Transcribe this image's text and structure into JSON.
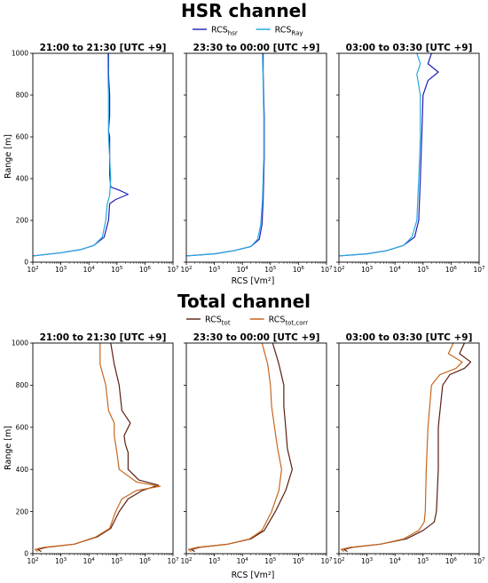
{
  "sections": [
    {
      "title": "HSR channel",
      "legend": [
        {
          "main": "RCS",
          "sub": "hsr",
          "color": "#1f1fb4"
        },
        {
          "main": "RCS",
          "sub": "Ray",
          "color": "#29a8e0"
        }
      ],
      "xlabel": "RCS [Vm²]"
    },
    {
      "title": "Total channel",
      "legend": [
        {
          "main": "RCS",
          "sub": "tot",
          "color": "#5a1f12"
        },
        {
          "main": "RCS",
          "sub": "tot,corr",
          "color": "#c8661e"
        }
      ],
      "xlabel": "RCS [Vm²]"
    }
  ],
  "y_axis_label": "Range [m]",
  "x_tick_labels": [
    {
      "base": "10",
      "exp": "2"
    },
    {
      "base": "10",
      "exp": "3"
    },
    {
      "base": "10",
      "exp": "4"
    },
    {
      "base": "10",
      "exp": "5"
    },
    {
      "base": "10",
      "exp": "6"
    },
    {
      "base": "10",
      "exp": "7"
    }
  ],
  "y_tick_labels": [
    "0",
    "200",
    "400",
    "600",
    "800",
    "1000"
  ],
  "chart_data": [
    {
      "type": "line",
      "title": "21:00 to 21:30 [UTC +9]",
      "section": "HSR channel",
      "x_scale": "log",
      "xlim": [
        100,
        10000000
      ],
      "ylim": [
        0,
        1000
      ],
      "xlabel": "RCS [Vm²]",
      "ylabel": "Range [m]",
      "series": [
        {
          "name": "RCS_hsr",
          "color": "#1f1fb4",
          "points": [
            [
              100,
              30
            ],
            [
              1000,
              45
            ],
            [
              5000,
              60
            ],
            [
              15000,
              80
            ],
            [
              35000,
              120
            ],
            [
              50000,
              200
            ],
            [
              55000,
              280
            ],
            [
              90000,
              300
            ],
            [
              250000,
              325
            ],
            [
              120000,
              345
            ],
            [
              60000,
              360
            ],
            [
              55000,
              420
            ],
            [
              55000,
              600
            ],
            [
              50000,
              630
            ],
            [
              55000,
              700
            ],
            [
              55000,
              800
            ],
            [
              50000,
              900
            ],
            [
              50000,
              1000
            ]
          ]
        },
        {
          "name": "RCS_Ray",
          "color": "#29a8e0",
          "points": [
            [
              100,
              30
            ],
            [
              1000,
              45
            ],
            [
              5000,
              60
            ],
            [
              15000,
              80
            ],
            [
              30000,
              120
            ],
            [
              40000,
              200
            ],
            [
              45000,
              280
            ],
            [
              55000,
              320
            ],
            [
              60000,
              400
            ],
            [
              55000,
              500
            ],
            [
              50000,
              600
            ],
            [
              50000,
              700
            ],
            [
              50000,
              800
            ],
            [
              48000,
              900
            ],
            [
              47000,
              1000
            ]
          ]
        }
      ]
    },
    {
      "type": "line",
      "title": "23:30 to 00:00 [UTC +9]",
      "section": "HSR channel",
      "x_scale": "log",
      "xlim": [
        100,
        10000000
      ],
      "ylim": [
        0,
        1000
      ],
      "xlabel": "RCS [Vm²]",
      "ylabel": "Range [m]",
      "series": [
        {
          "name": "RCS_hsr",
          "color": "#1f1fb4",
          "points": [
            [
              100,
              30
            ],
            [
              1000,
              40
            ],
            [
              5000,
              55
            ],
            [
              20000,
              75
            ],
            [
              40000,
              110
            ],
            [
              50000,
              180
            ],
            [
              55000,
              300
            ],
            [
              60000,
              500
            ],
            [
              60000,
              700
            ],
            [
              55000,
              900
            ],
            [
              55000,
              1000
            ]
          ]
        },
        {
          "name": "RCS_Ray",
          "color": "#29a8e0",
          "points": [
            [
              100,
              30
            ],
            [
              1000,
              40
            ],
            [
              5000,
              55
            ],
            [
              20000,
              75
            ],
            [
              35000,
              110
            ],
            [
              45000,
              180
            ],
            [
              52000,
              300
            ],
            [
              58000,
              500
            ],
            [
              58000,
              700
            ],
            [
              54000,
              900
            ],
            [
              52000,
              1000
            ]
          ]
        }
      ]
    },
    {
      "type": "line",
      "title": "03:00 to 03:30 [UTC +9]",
      "section": "HSR channel",
      "x_scale": "log",
      "xlim": [
        100,
        10000000
      ],
      "ylim": [
        0,
        1000
      ],
      "xlabel": "RCS [Vm²]",
      "ylabel": "Range [m]",
      "series": [
        {
          "name": "RCS_hsr",
          "color": "#1f1fb4",
          "points": [
            [
              100,
              30
            ],
            [
              1000,
              40
            ],
            [
              5000,
              55
            ],
            [
              20000,
              80
            ],
            [
              50000,
              120
            ],
            [
              70000,
              200
            ],
            [
              80000,
              400
            ],
            [
              90000,
              600
            ],
            [
              100000,
              800
            ],
            [
              150000,
              870
            ],
            [
              350000,
              910
            ],
            [
              150000,
              950
            ],
            [
              200000,
              1000
            ]
          ]
        },
        {
          "name": "RCS_Ray",
          "color": "#29a8e0",
          "points": [
            [
              100,
              30
            ],
            [
              1000,
              40
            ],
            [
              5000,
              55
            ],
            [
              20000,
              80
            ],
            [
              40000,
              120
            ],
            [
              60000,
              200
            ],
            [
              70000,
              400
            ],
            [
              80000,
              600
            ],
            [
              80000,
              800
            ],
            [
              60000,
              900
            ],
            [
              80000,
              950
            ],
            [
              60000,
              1000
            ]
          ]
        }
      ]
    },
    {
      "type": "line",
      "title": "21:00 to 21:30 [UTC +9]",
      "section": "Total channel",
      "x_scale": "log",
      "xlim": [
        100,
        10000000
      ],
      "ylim": [
        0,
        1000
      ],
      "xlabel": "RCS [Vm²]",
      "ylabel": "Range [m]",
      "series": [
        {
          "name": "RCS_tot",
          "color": "#5a1f12",
          "points": [
            [
              200,
              10
            ],
            [
              150,
              20
            ],
            [
              300,
              30
            ],
            [
              3000,
              45
            ],
            [
              20000,
              80
            ],
            [
              60000,
              120
            ],
            [
              120000,
              200
            ],
            [
              250000,
              260
            ],
            [
              800000,
              300
            ],
            [
              3000000,
              325
            ],
            [
              600000,
              350
            ],
            [
              250000,
              400
            ],
            [
              250000,
              480
            ],
            [
              200000,
              520
            ],
            [
              180000,
              560
            ],
            [
              300000,
              620
            ],
            [
              150000,
              680
            ],
            [
              120000,
              800
            ],
            [
              80000,
              900
            ],
            [
              60000,
              1000
            ]
          ]
        },
        {
          "name": "RCS_tot,corr",
          "color": "#c8661e",
          "points": [
            [
              150,
              10
            ],
            [
              120,
              20
            ],
            [
              250,
              30
            ],
            [
              3000,
              45
            ],
            [
              18000,
              80
            ],
            [
              55000,
              120
            ],
            [
              90000,
              200
            ],
            [
              150000,
              260
            ],
            [
              500000,
              300
            ],
            [
              3500000,
              320
            ],
            [
              500000,
              340
            ],
            [
              120000,
              400
            ],
            [
              100000,
              480
            ],
            [
              80000,
              560
            ],
            [
              80000,
              620
            ],
            [
              50000,
              680
            ],
            [
              40000,
              800
            ],
            [
              25000,
              900
            ],
            [
              25000,
              1000
            ]
          ]
        }
      ]
    },
    {
      "type": "line",
      "title": "23:30 to 00:00 [UTC +9]",
      "section": "Total channel",
      "x_scale": "log",
      "xlim": [
        100,
        10000000
      ],
      "ylim": [
        0,
        1000
      ],
      "xlabel": "RCS [Vm²]",
      "ylabel": "Range [m]",
      "series": [
        {
          "name": "RCS_tot",
          "color": "#5a1f12",
          "points": [
            [
              200,
              10
            ],
            [
              150,
              20
            ],
            [
              300,
              30
            ],
            [
              3000,
              45
            ],
            [
              20000,
              70
            ],
            [
              60000,
              110
            ],
            [
              150000,
              200
            ],
            [
              350000,
              300
            ],
            [
              600000,
              400
            ],
            [
              400000,
              500
            ],
            [
              350000,
              600
            ],
            [
              300000,
              700
            ],
            [
              300000,
              800
            ],
            [
              200000,
              900
            ],
            [
              120000,
              1000
            ]
          ]
        },
        {
          "name": "RCS_tot,corr",
          "color": "#c8661e",
          "points": [
            [
              150,
              10
            ],
            [
              120,
              20
            ],
            [
              250,
              30
            ],
            [
              3000,
              45
            ],
            [
              18000,
              70
            ],
            [
              50000,
              110
            ],
            [
              110000,
              200
            ],
            [
              200000,
              300
            ],
            [
              250000,
              400
            ],
            [
              180000,
              500
            ],
            [
              140000,
              600
            ],
            [
              110000,
              700
            ],
            [
              100000,
              800
            ],
            [
              80000,
              900
            ],
            [
              50000,
              1000
            ]
          ]
        }
      ]
    },
    {
      "type": "line",
      "title": "03:00 to 03:30 [UTC +9]",
      "section": "Total channel",
      "x_scale": "log",
      "xlim": [
        100,
        10000000
      ],
      "ylim": [
        0,
        1000
      ],
      "xlabel": "RCS [Vm²]",
      "ylabel": "Range [m]",
      "series": [
        {
          "name": "RCS_tot",
          "color": "#5a1f12",
          "points": [
            [
              200,
              10
            ],
            [
              150,
              20
            ],
            [
              300,
              30
            ],
            [
              3000,
              45
            ],
            [
              25000,
              70
            ],
            [
              100000,
              110
            ],
            [
              250000,
              150
            ],
            [
              300000,
              200
            ],
            [
              350000,
              400
            ],
            [
              350000,
              600
            ],
            [
              500000,
              800
            ],
            [
              900000,
              850
            ],
            [
              3000000,
              880
            ],
            [
              5000000,
              910
            ],
            [
              2000000,
              950
            ],
            [
              3000000,
              1000
            ]
          ]
        },
        {
          "name": "RCS_tot,corr",
          "color": "#c8661e",
          "points": [
            [
              150,
              10
            ],
            [
              120,
              20
            ],
            [
              250,
              30
            ],
            [
              3000,
              45
            ],
            [
              20000,
              70
            ],
            [
              70000,
              110
            ],
            [
              110000,
              150
            ],
            [
              120000,
              200
            ],
            [
              130000,
              400
            ],
            [
              150000,
              600
            ],
            [
              200000,
              800
            ],
            [
              400000,
              850
            ],
            [
              1500000,
              880
            ],
            [
              2500000,
              910
            ],
            [
              800000,
              950
            ],
            [
              1200000,
              1000
            ]
          ]
        }
      ]
    }
  ]
}
